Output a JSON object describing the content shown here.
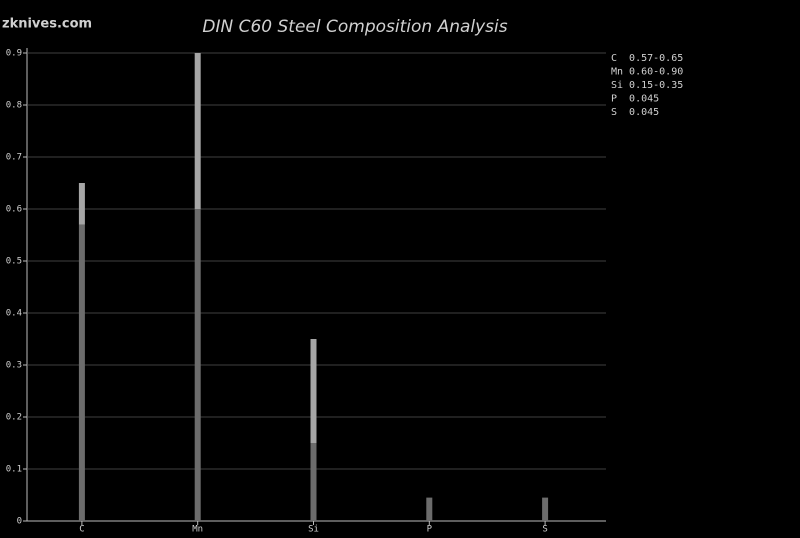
{
  "watermark": "zknives.com",
  "chart_data": {
    "type": "range-bar",
    "title": "DIN C60 Steel Composition Analysis",
    "categories": [
      "C",
      "Mn",
      "Si",
      "P",
      "S"
    ],
    "series": [
      {
        "color": "#6c6c6c",
        "values": [
          0.57,
          0.6,
          0.15,
          0.045,
          0.045
        ]
      },
      {
        "color": "#a6a6a6",
        "values": [
          0.65,
          0.9,
          0.35,
          null,
          null
        ]
      }
    ],
    "legend": [
      "C  0.57-0.65",
      "Mn 0.60-0.90",
      "Si 0.15-0.35",
      "P  0.045",
      "S  0.045"
    ],
    "ylim": [
      0,
      0.9
    ],
    "yticks": [
      0,
      0.1,
      0.2,
      0.3,
      0.4,
      0.5,
      0.6,
      0.7,
      0.8,
      0.9
    ],
    "grid": true
  }
}
